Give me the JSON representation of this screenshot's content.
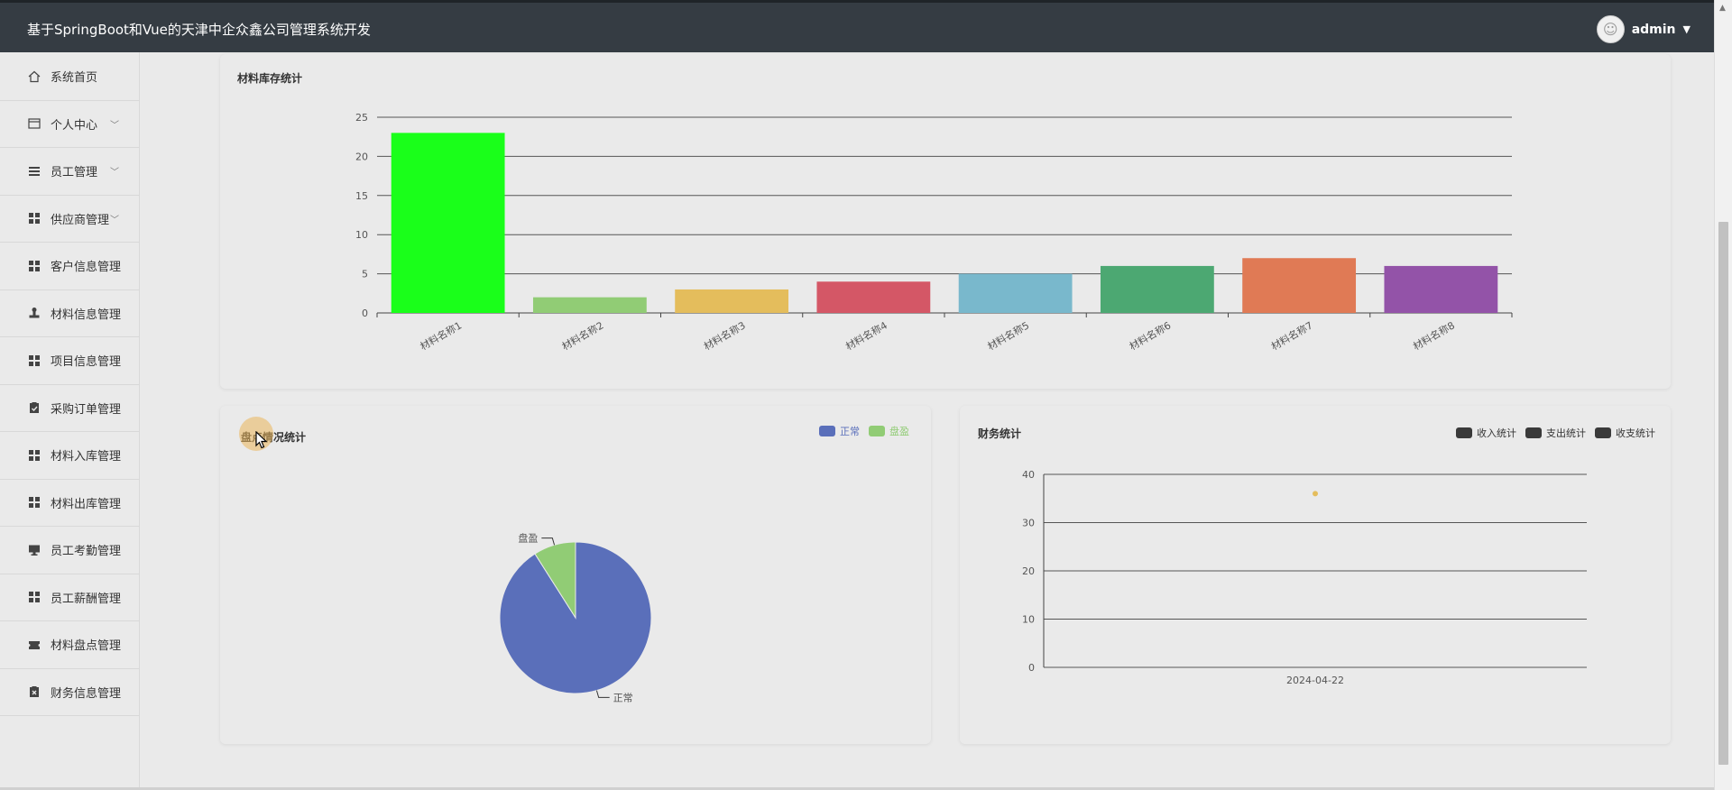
{
  "header": {
    "title": "基于SpringBoot和Vue的天津中企众鑫公司管理系统开发",
    "user_name": "admin"
  },
  "sidebar": {
    "items": [
      {
        "label": "系统首页",
        "icon": "home-icon",
        "has_submenu": false
      },
      {
        "label": "个人中心",
        "icon": "card-icon",
        "has_submenu": true
      },
      {
        "label": "员工管理",
        "icon": "list-icon",
        "has_submenu": true
      },
      {
        "label": "供应商管理",
        "icon": "grid-icon",
        "has_submenu": true
      },
      {
        "label": "客户信息管理",
        "icon": "grid-icon",
        "has_submenu": false
      },
      {
        "label": "材料信息管理",
        "icon": "stamp-icon",
        "has_submenu": false
      },
      {
        "label": "项目信息管理",
        "icon": "grid-icon",
        "has_submenu": false
      },
      {
        "label": "采购订单管理",
        "icon": "clipboard-check-icon",
        "has_submenu": false
      },
      {
        "label": "材料入库管理",
        "icon": "grid-icon",
        "has_submenu": false
      },
      {
        "label": "材料出库管理",
        "icon": "grid-icon",
        "has_submenu": false
      },
      {
        "label": "员工考勤管理",
        "icon": "monitor-icon",
        "has_submenu": false
      },
      {
        "label": "员工薪酬管理",
        "icon": "grid-icon",
        "has_submenu": false
      },
      {
        "label": "材料盘点管理",
        "icon": "ticket-icon",
        "has_submenu": false
      },
      {
        "label": "财务信息管理",
        "icon": "clipboard-x-icon",
        "has_submenu": false
      }
    ]
  },
  "cards": {
    "inventory_title": "材料库存统计",
    "stocktake_title": "盘点情况统计",
    "finance_title": "财务统计"
  },
  "chart_data": [
    {
      "type": "bar",
      "title": "材料库存统计",
      "categories": [
        "材料名称1",
        "材料名称2",
        "材料名称3",
        "材料名称4",
        "材料名称5",
        "材料名称6",
        "材料名称7",
        "材料名称8"
      ],
      "values": [
        23,
        2,
        3,
        4,
        5,
        6,
        7,
        6
      ],
      "colors": [
        "#1aff1a",
        "#91cc75",
        "#e4bd5c",
        "#d45766",
        "#79b8cc",
        "#4ca872",
        "#e07a55",
        "#9353a8"
      ],
      "ylim": [
        0,
        25
      ],
      "yticks": [
        0,
        5,
        10,
        15,
        20,
        25
      ],
      "grid": true
    },
    {
      "type": "pie",
      "title": "盘点情况统计",
      "labels": [
        "正常",
        "盘盈"
      ],
      "values": [
        91,
        9
      ],
      "colors": [
        "#5a6fba",
        "#91cc75"
      ],
      "legend": "top-right"
    },
    {
      "type": "scatter",
      "title": "财务统计",
      "categories": [
        "2024-04-22"
      ],
      "series": [
        {
          "name": "收入统计",
          "values": [
            null
          ],
          "legend_color": "#3a3a3a"
        },
        {
          "name": "支出统计",
          "values": [
            null
          ],
          "legend_color": "#3a3a3a"
        },
        {
          "name": "收支统计",
          "values": [
            36
          ],
          "legend_color": "#3a3a3a",
          "point_color": "#e4bd5c"
        }
      ],
      "ylim": [
        0,
        40
      ],
      "yticks": [
        0,
        10,
        20,
        30,
        40
      ],
      "grid": true,
      "legend": "top-right"
    }
  ]
}
